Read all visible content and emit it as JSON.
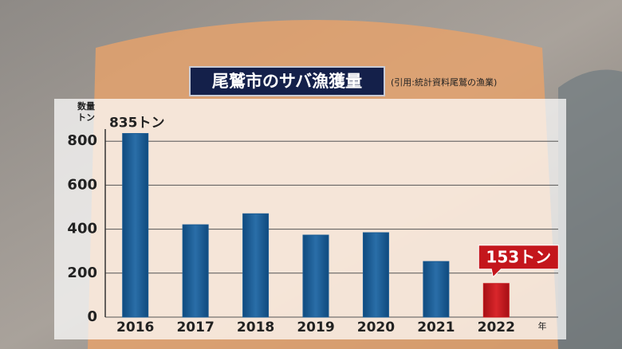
{
  "chart_data": {
    "type": "bar",
    "title": "尾鷲市のサバ漁獲量",
    "source": "(引用:統計資料尾鷲の漁業)",
    "y_label": [
      "数量",
      "トン"
    ],
    "x_unit": "年",
    "categories": [
      "2016",
      "2017",
      "2018",
      "2019",
      "2020",
      "2021",
      "2022"
    ],
    "values": [
      835,
      420,
      470,
      373,
      384,
      253,
      153
    ],
    "value_labels": [
      "835トン",
      null,
      null,
      null,
      null,
      null,
      "153トン"
    ],
    "colors": [
      "#1b5c93",
      "#1b5c93",
      "#1b5c93",
      "#1b5c93",
      "#1b5c93",
      "#1b5c93",
      "#c4161c"
    ],
    "ylim": [
      0,
      1000
    ],
    "yticks": [
      0,
      200,
      400,
      600,
      800
    ],
    "grid": true
  }
}
